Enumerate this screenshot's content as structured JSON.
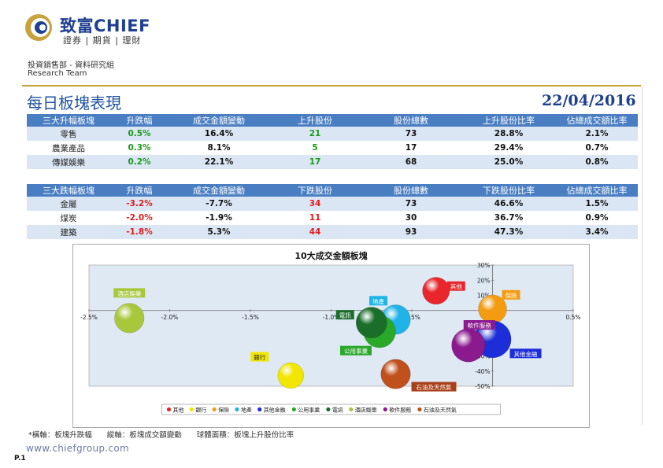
{
  "header": {
    "brand_name": "致富CHIEF",
    "brand_sub": "證券 | 期貨 | 理財",
    "department": "投資銷售部 - 資料研究組",
    "team": "Research Team"
  },
  "page": {
    "title": "每日板塊表現",
    "date": "22/04/2016"
  },
  "gainers": {
    "headers": [
      "三大升幅板塊",
      "升跌幅",
      "成交金額變動",
      "上升股份",
      "股份總數",
      "上升股份比率",
      "佔總成交額比率"
    ],
    "rows": [
      [
        "零售",
        "0.5%",
        "16.4%",
        "21",
        "73",
        "28.8%",
        "2.1%"
      ],
      [
        "農業產品",
        "0.3%",
        "8.1%",
        "5",
        "17",
        "29.4%",
        "0.7%"
      ],
      [
        "傳媒娛樂",
        "0.2%",
        "22.1%",
        "17",
        "68",
        "25.0%",
        "0.8%"
      ]
    ]
  },
  "losers": {
    "headers": [
      "三大跌幅板塊",
      "升跌幅",
      "成交金額變動",
      "下跌股份",
      "股份總數",
      "下跌股份比率",
      "佔總成交額比率"
    ],
    "rows": [
      [
        "金屬",
        "-3.2%",
        "-7.7%",
        "34",
        "73",
        "46.6%",
        "1.5%"
      ],
      [
        "煤炭",
        "-2.0%",
        "-1.9%",
        "11",
        "30",
        "36.7%",
        "0.9%"
      ],
      [
        "建築",
        "-1.8%",
        "5.3%",
        "44",
        "93",
        "47.3%",
        "3.4%"
      ]
    ]
  },
  "colors": {
    "header_bg": "#4a7ec2",
    "alt_row": "#dbe6f4",
    "positive": "#1a9a1a",
    "negative": "#e01b1b",
    "plot_bg": "#dfe9f4",
    "gold": "#c8a23c"
  },
  "chart_data": {
    "type": "bubble",
    "title": "10大成交金額板塊",
    "xlim": [
      -2.5,
      0.5
    ],
    "ylim": [
      -50,
      30
    ],
    "x_ticks": [
      "-2.5%",
      "-2.0%",
      "-1.5%",
      "-1.0%",
      "-0.5%",
      "0.0%",
      "0.5%"
    ],
    "y_ticks": [
      "30%",
      "20%",
      "10%",
      "0%",
      "-10%",
      "-20%",
      "-30%",
      "-40%",
      "-50%"
    ],
    "series": [
      {
        "name": "其他",
        "x": -0.35,
        "y": 13,
        "size": 0.45,
        "color": "#e8262b",
        "label_bg": "#e8262b"
      },
      {
        "name": "銀行",
        "x": -1.25,
        "y": -43,
        "size": 0.4,
        "color": "#f2e600",
        "label_bg": "#f2e600"
      },
      {
        "name": "保險",
        "x": 0.0,
        "y": 1,
        "size": 0.5,
        "color": "#f39c12",
        "label_bg": "#f39c12"
      },
      {
        "name": "地產",
        "x": -0.6,
        "y": -6,
        "size": 0.55,
        "color": "#1fb3e8",
        "label_bg": "#1fb3e8"
      },
      {
        "name": "其他金融",
        "x": 0.0,
        "y": -19,
        "size": 0.85,
        "color": "#1d2ed8",
        "label_bg": "#1d2ed8"
      },
      {
        "name": "公用事業",
        "x": -0.7,
        "y": -14,
        "size": 0.65,
        "color": "#2aa82a",
        "label_bg": "#2aa82a"
      },
      {
        "name": "電訊",
        "x": -0.75,
        "y": -8,
        "size": 0.6,
        "color": "#1a6e2a",
        "label_bg": "#1a6e2a"
      },
      {
        "name": "酒店娛樂",
        "x": -2.25,
        "y": -5,
        "size": 0.55,
        "color": "#a8c83c",
        "label_bg": "#a8c83c"
      },
      {
        "name": "軟件服務",
        "x": -0.15,
        "y": -23,
        "size": 0.7,
        "color": "#8b1a8f",
        "label_bg": "#8b1a8f"
      },
      {
        "name": "石油及天然氣",
        "x": -0.6,
        "y": -42,
        "size": 0.55,
        "color": "#c0501c",
        "label_bg": "#a8401a"
      }
    ]
  },
  "footnote": "*橫軸：板塊升跌幅　　縱軸：板塊成交額變動　　球體面積：板塊上升股份比率",
  "footer": {
    "url": "www.chiefgroup.com",
    "page": "P.1"
  }
}
